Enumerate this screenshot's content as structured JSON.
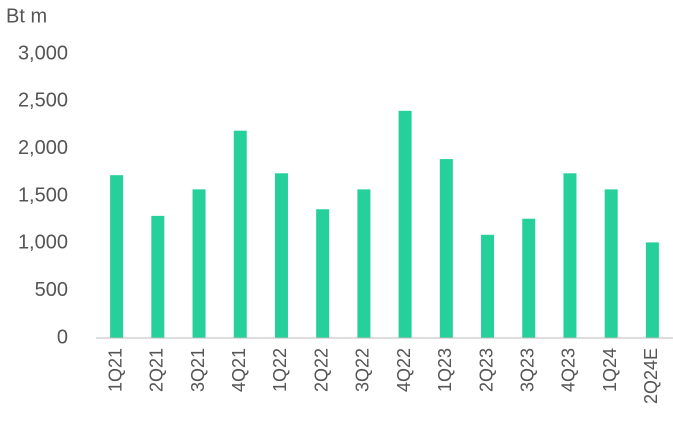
{
  "chart_data": {
    "type": "bar",
    "y_axis_label": "Bt m",
    "categories": [
      "1Q21",
      "2Q21",
      "3Q21",
      "4Q21",
      "1Q22",
      "2Q22",
      "3Q22",
      "4Q22",
      "1Q23",
      "2Q23",
      "3Q23",
      "4Q23",
      "1Q24",
      "2Q24E"
    ],
    "values": [
      1720,
      1290,
      1570,
      2190,
      1740,
      1360,
      1570,
      2400,
      1890,
      1090,
      1260,
      1740,
      1570,
      1010
    ],
    "color": "#26d09a",
    "ylim": [
      0,
      3000
    ],
    "yticks": [
      0,
      500,
      {
        "value": 1000,
        "label": "1,000"
      },
      {
        "value": 1500,
        "label": "1,500"
      },
      {
        "value": 2000,
        "label": "2,000"
      },
      {
        "value": 2500,
        "label": "2,500"
      },
      {
        "value": 3000,
        "label": "3,000"
      }
    ],
    "grid": false
  }
}
